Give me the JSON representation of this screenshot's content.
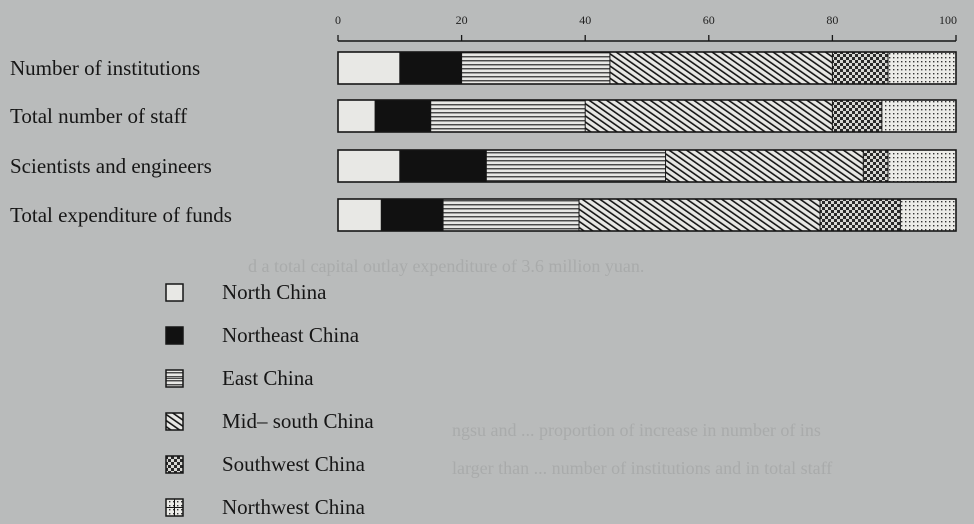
{
  "chart_data": {
    "type": "bar",
    "orientation": "horizontal",
    "stacked": true,
    "percent_stacked": true,
    "categories": [
      "Number of institutions",
      "Total number of staff",
      "Scientists and engineers",
      "Total expenditure of funds"
    ],
    "series": [
      {
        "name": "North China",
        "values": [
          10,
          6,
          10,
          7
        ]
      },
      {
        "name": "Northeast China",
        "values": [
          10,
          9,
          14,
          10
        ]
      },
      {
        "name": "East China",
        "values": [
          24,
          25,
          29,
          22
        ]
      },
      {
        "name": "Mid– south China",
        "values": [
          36,
          40,
          32,
          39
        ]
      },
      {
        "name": "Southwest China",
        "values": [
          9,
          8,
          4,
          13
        ]
      },
      {
        "name": "Northwest China",
        "values": [
          11,
          12,
          11,
          9
        ]
      }
    ],
    "xlim": [
      0,
      100
    ],
    "xticks": [
      "0",
      "20",
      "40",
      "60",
      "80",
      "100"
    ],
    "grid": false,
    "legend_placement": "bottom-left"
  },
  "colors": {
    "background": "#b9bbbb",
    "bar_fill": "#e8e8e5",
    "ink": "#161616"
  },
  "legend_icons": [
    "white-box-icon",
    "solid-black-box-icon",
    "horizontal-stripes-icon",
    "diagonal-hatch-icon",
    "checker-box-icon",
    "dotted-grid-icon"
  ],
  "background_text": [
    "d a total capital outlay expenditure of 3.6 million yuan.",
    "ngsu and ... proportion of increase in number of ins",
    "larger than ... number of institutions and in total staff"
  ]
}
